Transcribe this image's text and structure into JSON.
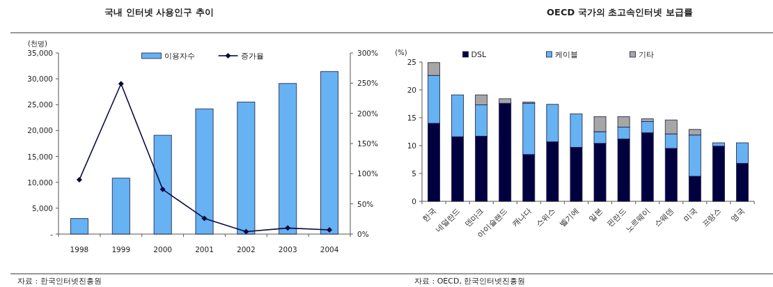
{
  "chart_data": [
    {
      "type": "bar",
      "title": "국내 인터넷 사용인구 추이",
      "ylabel": "(천명)",
      "categories": [
        "1998",
        "1999",
        "2000",
        "2001",
        "2002",
        "2003",
        "2004"
      ],
      "series": [
        {
          "name": "이용자수",
          "color": "#66b2f2",
          "values": [
            3000,
            10800,
            19100,
            24200,
            25500,
            29100,
            31400
          ]
        },
        {
          "name": "증가율",
          "type": "line",
          "axis": "y2",
          "color": "#0a0a40",
          "marker": "diamond",
          "values": [
            90,
            249,
            74,
            26,
            4,
            10,
            7
          ]
        }
      ],
      "ylim": [
        0,
        35000
      ],
      "yticks": [
        {
          "value": 0,
          "label": "-"
        },
        {
          "value": 5000,
          "label": "5,000"
        },
        {
          "value": 10000,
          "label": "10,000"
        },
        {
          "value": 15000,
          "label": "15,000"
        },
        {
          "value": 20000,
          "label": "20,000"
        },
        {
          "value": 25000,
          "label": "25,000"
        },
        {
          "value": 30000,
          "label": "30,000"
        },
        {
          "value": 35000,
          "label": "35,000"
        }
      ],
      "y2lim": [
        0,
        300
      ],
      "y2ticks": [
        {
          "value": 0,
          "label": "0%"
        },
        {
          "value": 50,
          "label": "50%"
        },
        {
          "value": 100,
          "label": "100%"
        },
        {
          "value": 150,
          "label": "150%"
        },
        {
          "value": 200,
          "label": "200%"
        },
        {
          "value": 250,
          "label": "250%"
        },
        {
          "value": 300,
          "label": "300%"
        }
      ],
      "legend": "top",
      "annotations": [
        "자료 : 한국인터넷진흥원"
      ]
    },
    {
      "type": "bar",
      "title": "OECD 국가의 초고속인터넷 보급률",
      "ylabel": "(%)",
      "stacked": true,
      "categories": [
        "한국",
        "네덜란드",
        "덴마크",
        "아이슬랜드",
        "캐나다",
        "스위스",
        "벨기에",
        "일본",
        "핀란드",
        "노르웨이",
        "스웨덴",
        "미국",
        "프랑스",
        "영국"
      ],
      "series": [
        {
          "name": "DSL",
          "color": "#000040",
          "values": [
            14.0,
            11.6,
            11.7,
            17.6,
            8.4,
            10.7,
            9.7,
            10.4,
            11.2,
            12.3,
            9.5,
            4.5,
            9.9,
            6.8
          ]
        },
        {
          "name": "케이블",
          "color": "#66b2f2",
          "values": [
            8.6,
            7.5,
            5.6,
            0,
            9.2,
            6.7,
            6.0,
            2.1,
            2.1,
            2.0,
            2.6,
            7.4,
            0.6,
            3.7
          ]
        },
        {
          "name": "기타",
          "color": "#a6a6a6",
          "values": [
            2.3,
            0,
            1.8,
            0.8,
            0.2,
            0,
            0,
            2.7,
            1.9,
            0.5,
            2.5,
            1.0,
            0,
            0
          ]
        }
      ],
      "ylim": [
        0,
        25
      ],
      "yticks": [
        0,
        5,
        10,
        15,
        20,
        25
      ],
      "legend": "top",
      "annotations": [
        "자료 : OECD, 한국인터넷진흥원"
      ]
    }
  ]
}
